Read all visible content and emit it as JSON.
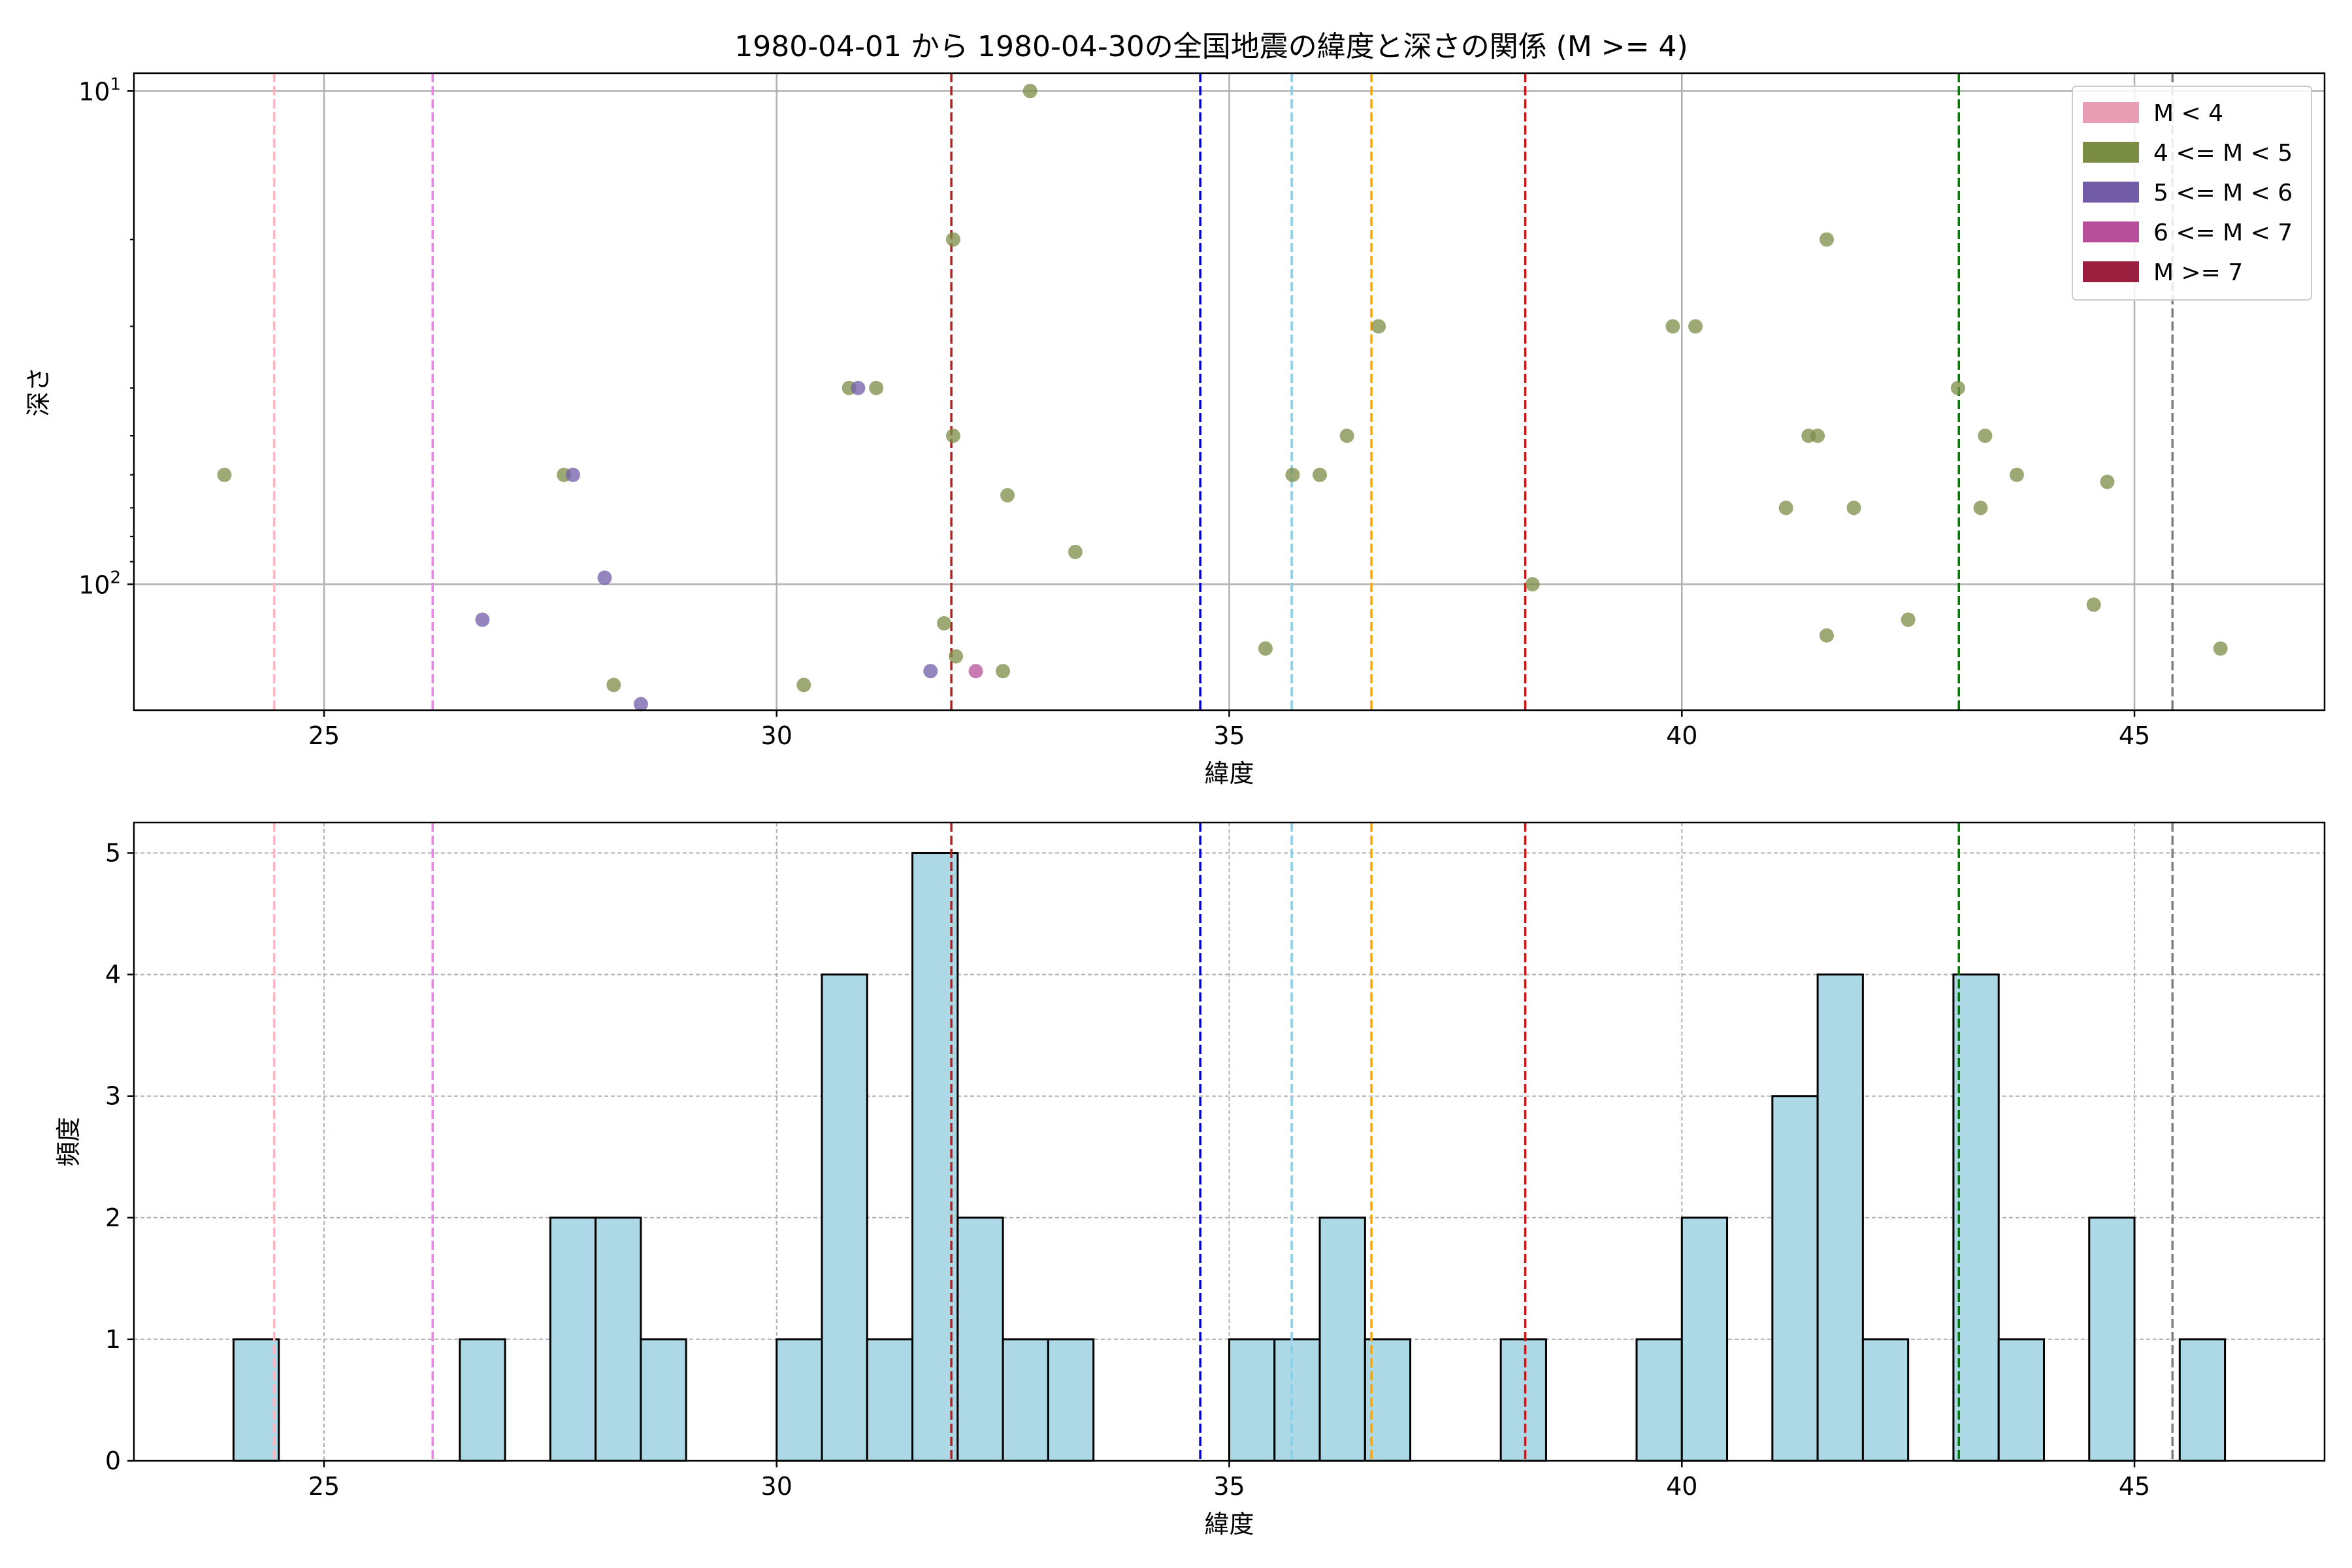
{
  "figure": {
    "title": "1980-04-01 から 1980-04-30の全国地震の緯度と深さの関係 (M >= 4)"
  },
  "chart_data": [
    {
      "type": "scatter",
      "xlabel": "緯度",
      "ylabel": "深さ",
      "xlim": [
        22.9,
        47.1
      ],
      "ylim": [
        180,
        9.2
      ],
      "yscale": "log",
      "y_inverted": true,
      "grid": true,
      "x_ticks": [
        25,
        30,
        35,
        40,
        45
      ],
      "y_ticks": [
        {
          "value": 10,
          "base": "10",
          "exp": "1"
        },
        {
          "value": 100,
          "base": "10",
          "exp": "2"
        }
      ],
      "legend": {
        "placement": "top-right",
        "entries": [
          {
            "label": "M < 4",
            "color": "#e79db4"
          },
          {
            "label": "4 <= M < 5",
            "color": "#7b8c45"
          },
          {
            "label": "5 <= M < 6",
            "color": "#725ca8"
          },
          {
            "label": "6 <= M < 7",
            "color": "#b74f9a"
          },
          {
            "label": "M >= 7",
            "color": "#9b1f3f"
          }
        ]
      },
      "reference_lines": [
        {
          "x": 24.45,
          "color": "#ffb6c1"
        },
        {
          "x": 26.2,
          "color": "#ee82ee"
        },
        {
          "x": 31.93,
          "color": "#b22222"
        },
        {
          "x": 34.68,
          "color": "#0000cd"
        },
        {
          "x": 35.69,
          "color": "#87ceeb"
        },
        {
          "x": 36.57,
          "color": "#ffa500"
        },
        {
          "x": 38.27,
          "color": "#ff0000"
        },
        {
          "x": 43.06,
          "color": "#008000"
        },
        {
          "x": 45.42,
          "color": "#808080"
        }
      ],
      "series": [
        {
          "magnitude_class": "4 <= M < 5",
          "color": "#7b8c45",
          "points": [
            {
              "x": 23.9,
              "y": 60
            },
            {
              "x": 27.65,
              "y": 60
            },
            {
              "x": 28.2,
              "y": 160
            },
            {
              "x": 30.3,
              "y": 160
            },
            {
              "x": 30.8,
              "y": 40
            },
            {
              "x": 31.1,
              "y": 40
            },
            {
              "x": 31.85,
              "y": 120
            },
            {
              "x": 31.95,
              "y": 20
            },
            {
              "x": 31.95,
              "y": 50
            },
            {
              "x": 31.98,
              "y": 140
            },
            {
              "x": 32.5,
              "y": 150
            },
            {
              "x": 32.8,
              "y": 10
            },
            {
              "x": 32.55,
              "y": 66
            },
            {
              "x": 33.3,
              "y": 86
            },
            {
              "x": 35.4,
              "y": 135
            },
            {
              "x": 35.7,
              "y": 60
            },
            {
              "x": 36.0,
              "y": 60
            },
            {
              "x": 36.3,
              "y": 50
            },
            {
              "x": 36.65,
              "y": 30
            },
            {
              "x": 38.35,
              "y": 100
            },
            {
              "x": 39.9,
              "y": 30
            },
            {
              "x": 40.15,
              "y": 30
            },
            {
              "x": 41.15,
              "y": 70
            },
            {
              "x": 41.4,
              "y": 50
            },
            {
              "x": 41.5,
              "y": 50
            },
            {
              "x": 41.6,
              "y": 20
            },
            {
              "x": 41.6,
              "y": 127
            },
            {
              "x": 41.9,
              "y": 70
            },
            {
              "x": 42.5,
              "y": 118
            },
            {
              "x": 43.05,
              "y": 40
            },
            {
              "x": 43.3,
              "y": 70
            },
            {
              "x": 43.35,
              "y": 50
            },
            {
              "x": 43.7,
              "y": 60
            },
            {
              "x": 44.55,
              "y": 110
            },
            {
              "x": 44.7,
              "y": 62
            },
            {
              "x": 45.95,
              "y": 135
            }
          ]
        },
        {
          "magnitude_class": "5 <= M < 6",
          "color": "#725ca8",
          "points": [
            {
              "x": 26.75,
              "y": 118
            },
            {
              "x": 27.75,
              "y": 60
            },
            {
              "x": 28.1,
              "y": 97
            },
            {
              "x": 28.5,
              "y": 175
            },
            {
              "x": 30.9,
              "y": 40
            },
            {
              "x": 31.7,
              "y": 150
            }
          ]
        },
        {
          "magnitude_class": "6 <= M < 7",
          "color": "#b74f9a",
          "points": [
            {
              "x": 32.2,
              "y": 150
            }
          ]
        }
      ]
    },
    {
      "type": "bar",
      "xlabel": "緯度",
      "ylabel": "頻度",
      "xlim": [
        22.9,
        47.1
      ],
      "ylim": [
        0,
        5.25
      ],
      "grid": true,
      "bar_color": "#add8e6",
      "x_ticks": [
        25,
        30,
        35,
        40,
        45
      ],
      "y_ticks": [
        0,
        1,
        2,
        3,
        4,
        5
      ],
      "bin_width": 0.5,
      "bins": [
        {
          "start": 24.0,
          "count": 1
        },
        {
          "start": 26.5,
          "count": 1
        },
        {
          "start": 27.5,
          "count": 2
        },
        {
          "start": 28.0,
          "count": 2
        },
        {
          "start": 28.5,
          "count": 1
        },
        {
          "start": 30.0,
          "count": 1
        },
        {
          "start": 30.5,
          "count": 4
        },
        {
          "start": 31.0,
          "count": 1
        },
        {
          "start": 31.5,
          "count": 5
        },
        {
          "start": 32.0,
          "count": 2
        },
        {
          "start": 32.5,
          "count": 1
        },
        {
          "start": 33.0,
          "count": 1
        },
        {
          "start": 35.0,
          "count": 1
        },
        {
          "start": 35.5,
          "count": 1
        },
        {
          "start": 36.0,
          "count": 2
        },
        {
          "start": 36.5,
          "count": 1
        },
        {
          "start": 38.0,
          "count": 1
        },
        {
          "start": 39.5,
          "count": 1
        },
        {
          "start": 40.0,
          "count": 2
        },
        {
          "start": 41.0,
          "count": 3
        },
        {
          "start": 41.5,
          "count": 4
        },
        {
          "start": 42.0,
          "count": 1
        },
        {
          "start": 43.0,
          "count": 4
        },
        {
          "start": 43.5,
          "count": 1
        },
        {
          "start": 44.5,
          "count": 2
        },
        {
          "start": 45.5,
          "count": 1
        }
      ],
      "reference_lines": [
        {
          "x": 24.45,
          "color": "#ffb6c1"
        },
        {
          "x": 26.2,
          "color": "#ee82ee"
        },
        {
          "x": 31.93,
          "color": "#b22222"
        },
        {
          "x": 34.68,
          "color": "#0000cd"
        },
        {
          "x": 35.69,
          "color": "#87ceeb"
        },
        {
          "x": 36.57,
          "color": "#ffa500"
        },
        {
          "x": 38.27,
          "color": "#ff0000"
        },
        {
          "x": 43.06,
          "color": "#008000"
        },
        {
          "x": 45.42,
          "color": "#808080"
        }
      ]
    }
  ]
}
